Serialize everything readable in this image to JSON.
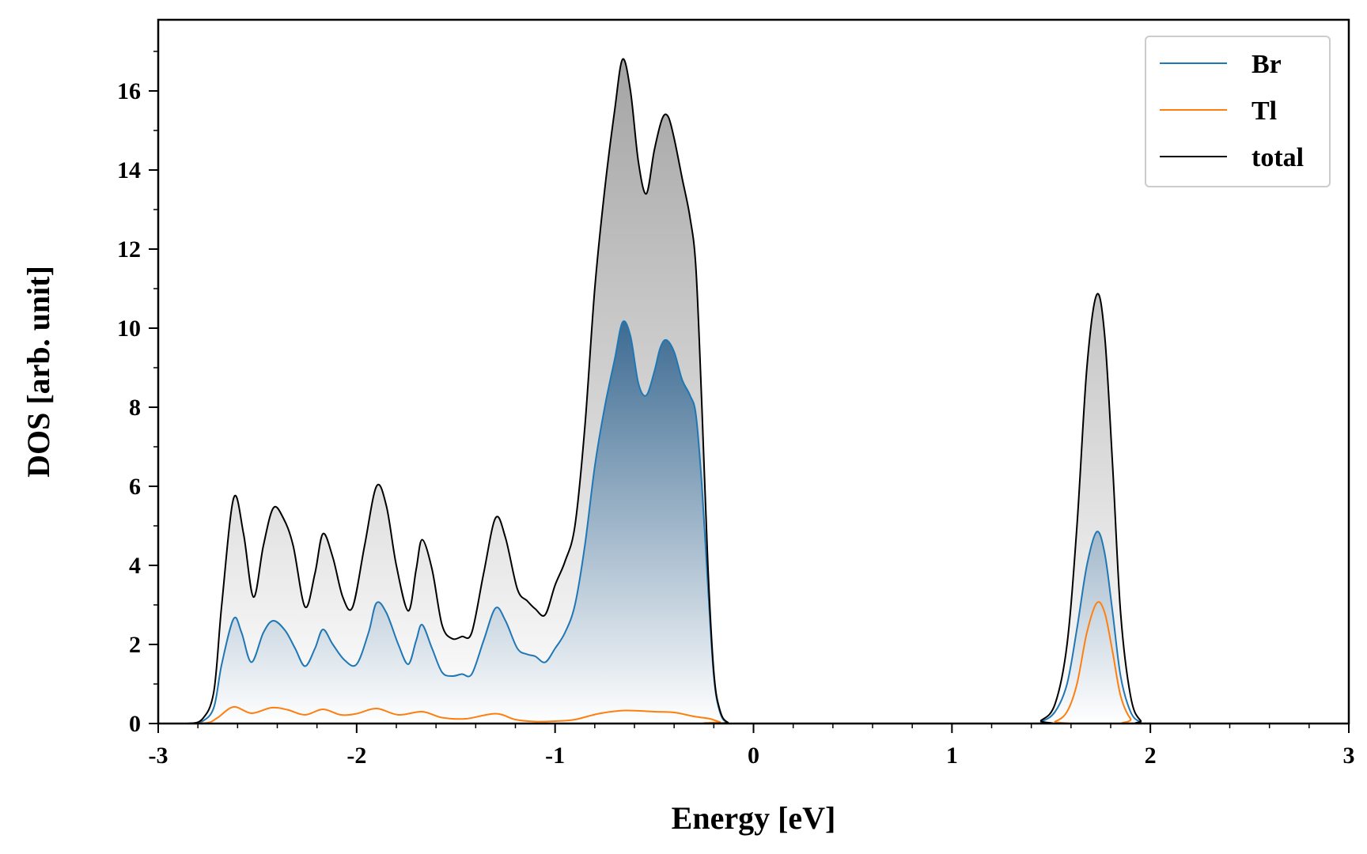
{
  "chart_data": {
    "type": "area",
    "title": "",
    "xlabel": "Energy [eV]",
    "ylabel": "DOS [arb. unit]",
    "xlim": [
      -3,
      3
    ],
    "ylim": [
      0,
      17.8
    ],
    "xticks": [
      -3,
      -2,
      -1,
      0,
      1,
      2,
      3
    ],
    "yticks": [
      0,
      2,
      4,
      6,
      8,
      10,
      12,
      14,
      16
    ],
    "xtick_labels": [
      "-3",
      "-2",
      "-1",
      "0",
      "1",
      "2",
      "3"
    ],
    "ytick_labels": [
      "0",
      "2",
      "4",
      "6",
      "8",
      "10",
      "12",
      "14",
      "16"
    ],
    "grid": false,
    "legend_position": "top-right",
    "series": [
      {
        "name": "Br",
        "color": "#1f77b4",
        "fill": "gradient-blue",
        "points": [
          [
            -2.85,
            0.0
          ],
          [
            -2.78,
            0.05
          ],
          [
            -2.72,
            0.4
          ],
          [
            -2.68,
            1.5
          ],
          [
            -2.62,
            2.65
          ],
          [
            -2.58,
            2.3
          ],
          [
            -2.53,
            1.55
          ],
          [
            -2.47,
            2.3
          ],
          [
            -2.42,
            2.6
          ],
          [
            -2.36,
            2.35
          ],
          [
            -2.31,
            1.9
          ],
          [
            -2.26,
            1.45
          ],
          [
            -2.21,
            1.9
          ],
          [
            -2.17,
            2.38
          ],
          [
            -2.12,
            2.0
          ],
          [
            -2.06,
            1.6
          ],
          [
            -2.0,
            1.5
          ],
          [
            -1.94,
            2.3
          ],
          [
            -1.9,
            3.05
          ],
          [
            -1.85,
            2.8
          ],
          [
            -1.79,
            2.0
          ],
          [
            -1.74,
            1.5
          ],
          [
            -1.7,
            2.1
          ],
          [
            -1.67,
            2.5
          ],
          [
            -1.62,
            1.9
          ],
          [
            -1.57,
            1.3
          ],
          [
            -1.52,
            1.2
          ],
          [
            -1.47,
            1.25
          ],
          [
            -1.42,
            1.25
          ],
          [
            -1.36,
            2.1
          ],
          [
            -1.3,
            2.92
          ],
          [
            -1.25,
            2.6
          ],
          [
            -1.19,
            1.9
          ],
          [
            -1.14,
            1.75
          ],
          [
            -1.1,
            1.7
          ],
          [
            -1.05,
            1.55
          ],
          [
            -1.0,
            1.9
          ],
          [
            -0.95,
            2.3
          ],
          [
            -0.9,
            3.0
          ],
          [
            -0.85,
            4.5
          ],
          [
            -0.8,
            6.5
          ],
          [
            -0.75,
            8.0
          ],
          [
            -0.7,
            9.2
          ],
          [
            -0.66,
            10.15
          ],
          [
            -0.62,
            9.8
          ],
          [
            -0.58,
            8.6
          ],
          [
            -0.54,
            8.3
          ],
          [
            -0.5,
            8.9
          ],
          [
            -0.47,
            9.5
          ],
          [
            -0.44,
            9.7
          ],
          [
            -0.4,
            9.4
          ],
          [
            -0.36,
            8.7
          ],
          [
            -0.32,
            8.3
          ],
          [
            -0.29,
            7.8
          ],
          [
            -0.26,
            6.0
          ],
          [
            -0.23,
            3.5
          ],
          [
            -0.2,
            1.2
          ],
          [
            -0.17,
            0.3
          ],
          [
            -0.13,
            0.02
          ],
          [
            -0.05,
            0.0
          ],
          [
            1.38,
            0.0
          ],
          [
            1.45,
            0.05
          ],
          [
            1.52,
            0.3
          ],
          [
            1.58,
            1.0
          ],
          [
            1.63,
            2.4
          ],
          [
            1.68,
            4.0
          ],
          [
            1.73,
            4.85
          ],
          [
            1.77,
            4.3
          ],
          [
            1.81,
            2.8
          ],
          [
            1.85,
            1.2
          ],
          [
            1.9,
            0.3
          ],
          [
            1.95,
            0.04
          ],
          [
            2.02,
            0.0
          ]
        ]
      },
      {
        "name": "Tl",
        "color": "#ff7f0e",
        "fill": "none",
        "points": [
          [
            -2.85,
            0.0
          ],
          [
            -2.75,
            0.02
          ],
          [
            -2.7,
            0.15
          ],
          [
            -2.62,
            0.42
          ],
          [
            -2.53,
            0.26
          ],
          [
            -2.43,
            0.4
          ],
          [
            -2.35,
            0.35
          ],
          [
            -2.26,
            0.22
          ],
          [
            -2.17,
            0.36
          ],
          [
            -2.08,
            0.22
          ],
          [
            -2.0,
            0.25
          ],
          [
            -1.9,
            0.38
          ],
          [
            -1.79,
            0.22
          ],
          [
            -1.67,
            0.3
          ],
          [
            -1.57,
            0.15
          ],
          [
            -1.45,
            0.12
          ],
          [
            -1.3,
            0.25
          ],
          [
            -1.2,
            0.1
          ],
          [
            -1.1,
            0.05
          ],
          [
            -1.0,
            0.06
          ],
          [
            -0.9,
            0.1
          ],
          [
            -0.78,
            0.25
          ],
          [
            -0.65,
            0.33
          ],
          [
            -0.5,
            0.3
          ],
          [
            -0.4,
            0.28
          ],
          [
            -0.3,
            0.18
          ],
          [
            -0.22,
            0.12
          ],
          [
            -0.17,
            0.04
          ],
          [
            -0.12,
            0.0
          ],
          [
            1.45,
            0.0
          ],
          [
            1.52,
            0.05
          ],
          [
            1.58,
            0.3
          ],
          [
            1.63,
            1.0
          ],
          [
            1.68,
            2.3
          ],
          [
            1.73,
            3.05
          ],
          [
            1.77,
            2.8
          ],
          [
            1.81,
            1.8
          ],
          [
            1.85,
            0.7
          ],
          [
            1.9,
            0.12
          ],
          [
            1.95,
            0.0
          ]
        ]
      },
      {
        "name": "total",
        "color": "#000000",
        "fill": "gradient-gray",
        "points": [
          [
            -2.85,
            0.0
          ],
          [
            -2.78,
            0.1
          ],
          [
            -2.72,
            0.8
          ],
          [
            -2.68,
            3.0
          ],
          [
            -2.62,
            5.7
          ],
          [
            -2.57,
            4.8
          ],
          [
            -2.52,
            3.2
          ],
          [
            -2.47,
            4.5
          ],
          [
            -2.42,
            5.45
          ],
          [
            -2.37,
            5.2
          ],
          [
            -2.32,
            4.5
          ],
          [
            -2.26,
            2.95
          ],
          [
            -2.21,
            3.8
          ],
          [
            -2.17,
            4.8
          ],
          [
            -2.12,
            4.2
          ],
          [
            -2.07,
            3.2
          ],
          [
            -2.02,
            2.95
          ],
          [
            -1.96,
            4.5
          ],
          [
            -1.9,
            6.0
          ],
          [
            -1.85,
            5.5
          ],
          [
            -1.8,
            4.0
          ],
          [
            -1.74,
            2.85
          ],
          [
            -1.7,
            3.9
          ],
          [
            -1.67,
            4.65
          ],
          [
            -1.62,
            3.9
          ],
          [
            -1.57,
            2.5
          ],
          [
            -1.52,
            2.15
          ],
          [
            -1.47,
            2.2
          ],
          [
            -1.42,
            2.3
          ],
          [
            -1.36,
            3.8
          ],
          [
            -1.3,
            5.2
          ],
          [
            -1.25,
            4.7
          ],
          [
            -1.19,
            3.4
          ],
          [
            -1.14,
            3.1
          ],
          [
            -1.1,
            2.9
          ],
          [
            -1.05,
            2.75
          ],
          [
            -1.0,
            3.5
          ],
          [
            -0.95,
            4.1
          ],
          [
            -0.9,
            5.0
          ],
          [
            -0.85,
            7.5
          ],
          [
            -0.8,
            11.0
          ],
          [
            -0.75,
            13.5
          ],
          [
            -0.7,
            15.5
          ],
          [
            -0.66,
            16.8
          ],
          [
            -0.62,
            16.0
          ],
          [
            -0.58,
            14.2
          ],
          [
            -0.54,
            13.4
          ],
          [
            -0.5,
            14.5
          ],
          [
            -0.46,
            15.3
          ],
          [
            -0.43,
            15.35
          ],
          [
            -0.4,
            14.8
          ],
          [
            -0.36,
            13.8
          ],
          [
            -0.32,
            12.8
          ],
          [
            -0.29,
            11.5
          ],
          [
            -0.26,
            8.0
          ],
          [
            -0.23,
            4.0
          ],
          [
            -0.2,
            1.3
          ],
          [
            -0.17,
            0.35
          ],
          [
            -0.13,
            0.03
          ],
          [
            -0.05,
            0.0
          ],
          [
            1.38,
            0.0
          ],
          [
            1.45,
            0.08
          ],
          [
            1.52,
            0.5
          ],
          [
            1.58,
            2.0
          ],
          [
            1.63,
            5.0
          ],
          [
            1.68,
            9.0
          ],
          [
            1.73,
            10.85
          ],
          [
            1.77,
            9.8
          ],
          [
            1.81,
            6.5
          ],
          [
            1.85,
            2.8
          ],
          [
            1.9,
            0.7
          ],
          [
            1.95,
            0.08
          ],
          [
            2.02,
            0.0
          ]
        ]
      }
    ]
  },
  "colors": {
    "br_line": "#1f77b4",
    "tl_line": "#ff7f0e",
    "total_line": "#000000",
    "br_fill_top": "#3a6a93",
    "total_fill_top": "#a8a8a8",
    "legend_border": "#cccccc"
  }
}
